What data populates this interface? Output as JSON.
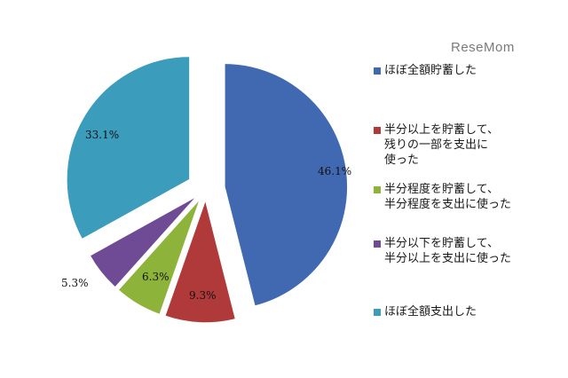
{
  "watermark": "ReseMom",
  "chart_data": {
    "type": "pie",
    "exploded": true,
    "series": [
      {
        "name": "ほぼ全額貯蓄した",
        "value": 46.1,
        "label": "46.1%",
        "color": "#4169B2"
      },
      {
        "name": "半分以上を貯蓄して、\n残りの一部を支出に\n使った",
        "value": 9.3,
        "label": "9.3%",
        "color": "#B03A3A"
      },
      {
        "name": "半分程度を貯蓄して、\n半分程度を支出に使った",
        "value": 6.3,
        "label": "6.3%",
        "color": "#8DB33A"
      },
      {
        "name": "半分以下を貯蓄して、\n半分以上を支出に使った",
        "value": 5.3,
        "label": "5.3%",
        "color": "#6F4A95"
      },
      {
        "name": "ほぼ全額支出した",
        "value": 33.1,
        "label": "33.1%",
        "color": "#3C9CBC"
      }
    ],
    "legend_position": "right"
  }
}
